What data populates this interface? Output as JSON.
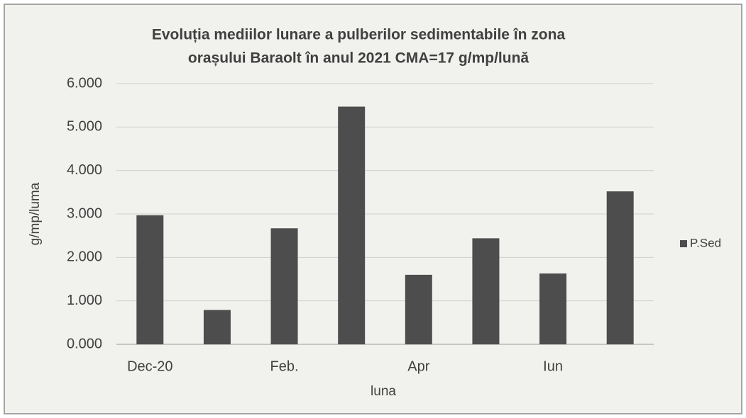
{
  "chart_data": {
    "type": "bar",
    "title": [
      "Evoluția mediilor lunare a pulberilor sedimentabile în zona",
      "orașului Baraolt în anul 2021 CMA=17 g/mp/lună"
    ],
    "x_label": "luna",
    "y_label": "g/mp/luma",
    "categories": [
      "Dec-20",
      null,
      "Feb.",
      null,
      "Apr",
      null,
      "Iun",
      null
    ],
    "series": [
      {
        "name": "P.Sed",
        "color": "#4d4d4d",
        "values": [
          2.97,
          0.79,
          2.67,
          5.47,
          1.6,
          2.44,
          1.63,
          3.52
        ]
      }
    ],
    "ylim": [
      0,
      6
    ],
    "yticks": [
      {
        "value": 0,
        "label": "0.000"
      },
      {
        "value": 1,
        "label": "1.000"
      },
      {
        "value": 2,
        "label": "2.000"
      },
      {
        "value": 3,
        "label": "3.000"
      },
      {
        "value": 4,
        "label": "4.000"
      },
      {
        "value": 5,
        "label": "5.000"
      },
      {
        "value": 6,
        "label": "6.000"
      }
    ],
    "grid": true,
    "legend": "right"
  }
}
